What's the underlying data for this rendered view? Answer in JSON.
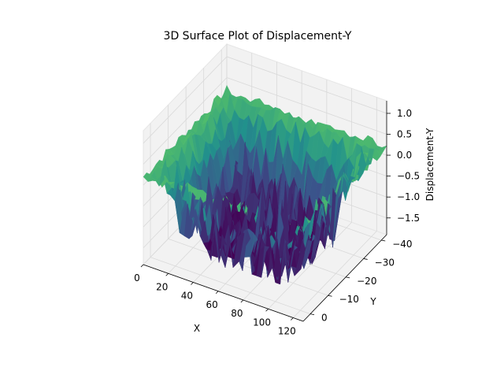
{
  "chart_data": {
    "type": "surface",
    "title": "3D Surface Plot of Displacement-Y",
    "xlabel": "X",
    "ylabel": "Y",
    "zlabel": "Displacement-Y",
    "xlim": [
      0,
      128
    ],
    "ylim": [
      -43,
      4
    ],
    "zlim": [
      -1.9,
      1.3
    ],
    "x_ticks": [
      0,
      20,
      40,
      60,
      80,
      100,
      120
    ],
    "x_tick_labels": [
      "0",
      "20",
      "40",
      "60",
      "80",
      "100",
      "120"
    ],
    "y_ticks": [
      0,
      -10,
      -20,
      -30,
      -40
    ],
    "y_tick_labels": [
      "0",
      "−10",
      "−20",
      "−30",
      "−40"
    ],
    "z_ticks": [
      1.0,
      0.5,
      0.0,
      -0.5,
      -1.0,
      -1.5
    ],
    "z_tick_labels": [
      "1.0",
      "0.5",
      "0.0",
      "−0.5",
      "−1.0",
      "−1.5"
    ],
    "grid": true,
    "colormap": "viridis",
    "colormap_colors": [
      "#440154",
      "#3b528b",
      "#21918c",
      "#5ec962",
      "#fde725"
    ],
    "pane_color": "#f2f2f2",
    "grid_color": "#d9d9d9",
    "surface": {
      "x_range": [
        0,
        128
      ],
      "y_range": [
        -43,
        4
      ],
      "edge_value": 0.2,
      "basin_depth": -1.75,
      "rim_height": 0.25,
      "noise_amplitude": 0.55
    }
  }
}
